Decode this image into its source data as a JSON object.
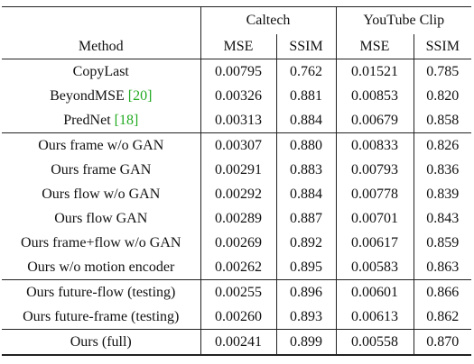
{
  "caption_fragment": "",
  "table": {
    "group_headers": [
      "Caltech",
      "YouTube Clip"
    ],
    "column_headers": [
      "Method",
      "MSE",
      "SSIM",
      "MSE",
      "SSIM"
    ],
    "ref_color": "#22aa22",
    "rows": [
      {
        "method": "CopyLast",
        "ref": "",
        "values": [
          "0.00795",
          "0.762",
          "0.01521",
          "0.785"
        ]
      },
      {
        "method": "BeyondMSE ",
        "ref": "[20]",
        "values": [
          "0.00326",
          "0.881",
          "0.00853",
          "0.820"
        ]
      },
      {
        "method": "PredNet ",
        "ref": "[18]",
        "values": [
          "0.00313",
          "0.884",
          "0.00679",
          "0.858"
        ]
      },
      {
        "method": "Ours frame w/o GAN",
        "ref": "",
        "values": [
          "0.00307",
          "0.880",
          "0.00833",
          "0.826"
        ]
      },
      {
        "method": "Ours frame GAN",
        "ref": "",
        "values": [
          "0.00291",
          "0.883",
          "0.00793",
          "0.836"
        ]
      },
      {
        "method": "Ours flow w/o GAN",
        "ref": "",
        "values": [
          "0.00292",
          "0.884",
          "0.00778",
          "0.839"
        ]
      },
      {
        "method": "Ours flow GAN",
        "ref": "",
        "values": [
          "0.00289",
          "0.887",
          "0.00701",
          "0.843"
        ]
      },
      {
        "method": "Ours frame+flow w/o GAN",
        "ref": "",
        "values": [
          "0.00269",
          "0.892",
          "0.00617",
          "0.859"
        ]
      },
      {
        "method": "Ours w/o motion encoder",
        "ref": "",
        "values": [
          "0.00262",
          "0.895",
          "0.00583",
          "0.863"
        ]
      },
      {
        "method": "Ours future-flow (testing)",
        "ref": "",
        "values": [
          "0.00255",
          "0.896",
          "0.00601",
          "0.866"
        ]
      },
      {
        "method": "Ours future-frame (testing)",
        "ref": "",
        "values": [
          "0.00260",
          "0.893",
          "0.00613",
          "0.862"
        ]
      },
      {
        "method": "Ours (full)",
        "ref": "",
        "values": [
          "0.00241",
          "0.899",
          "0.00558",
          "0.870"
        ]
      }
    ]
  }
}
